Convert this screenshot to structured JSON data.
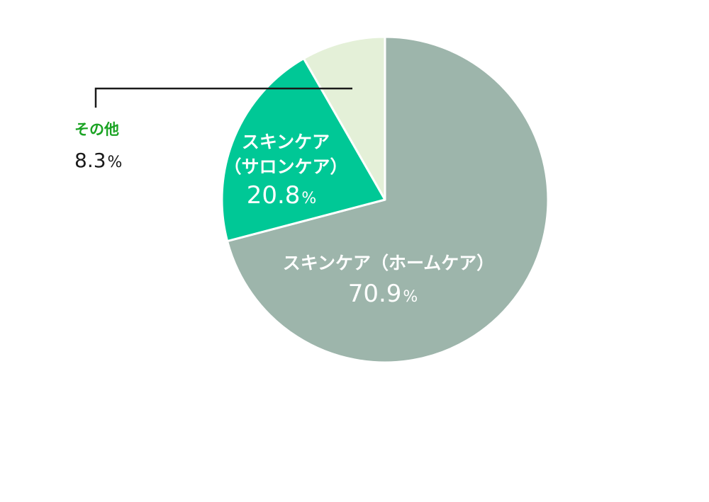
{
  "chart_data": {
    "type": "pie",
    "slices": [
      {
        "name": "スキンケア（ホームケア）",
        "value": 70.9,
        "unit": "%",
        "color": "#9db5ab"
      },
      {
        "name_line1": "スキンケア",
        "name_line2": "（サロンケア）",
        "value": 20.8,
        "unit": "%",
        "color": "#00c896"
      },
      {
        "name": "その他",
        "value": 8.3,
        "unit": "%",
        "color": "#e4f0d8"
      }
    ],
    "start_angle": "12 o'clock",
    "direction": "clockwise",
    "other_label_color": "#1aa323",
    "leader_line_color": "#1a1a1a"
  }
}
